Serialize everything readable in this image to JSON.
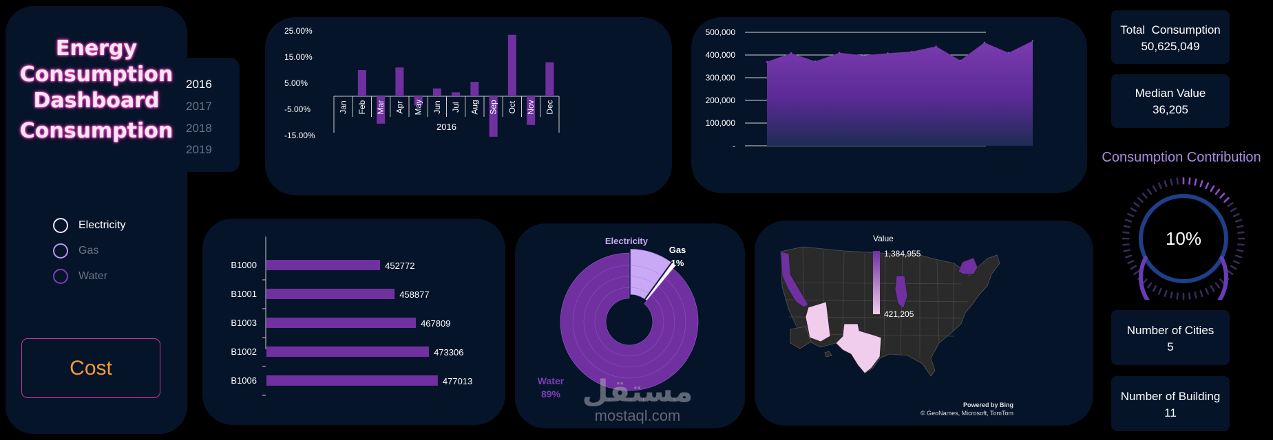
{
  "sidebar": {
    "title_lines": [
      "Energy",
      "Consumption",
      "Dashboard"
    ],
    "section_label": "Consumption",
    "years": [
      {
        "label": "2016",
        "active": true
      },
      {
        "label": "2017",
        "active": false
      },
      {
        "label": "2018",
        "active": false
      },
      {
        "label": "2019",
        "active": false
      }
    ],
    "options": [
      {
        "label": "Electricity",
        "color": "#f2e6ff",
        "label_color": "#ffffff"
      },
      {
        "label": "Gas",
        "color": "#b996f0",
        "label_color": "#6c7385"
      },
      {
        "label": "Water",
        "color": "#7a3fb8",
        "label_color": "#6c7385"
      }
    ],
    "cost_button": "Cost"
  },
  "kpis": {
    "total_label": "Total  Consumption",
    "total_value": "50,625,049",
    "median_label": "Median Value",
    "median_value": "36,205",
    "contribution_label": "Consumption Contribution",
    "contribution_value": "10%",
    "contribution_fraction": 0.1,
    "cities_label": "Number of Cities",
    "cities_value": "5",
    "buildings_label": "Number of Building",
    "buildings_value": "11"
  },
  "chart_data": [
    {
      "type": "bar",
      "categories": [
        "Jan",
        "Feb",
        "Mar",
        "Apr",
        "May",
        "Jun",
        "Jul",
        "Aug",
        "Sep",
        "Oct",
        "Nov",
        "Dec"
      ],
      "values": [
        0,
        10.0,
        -10.5,
        11.0,
        -3.5,
        3.0,
        1.5,
        5.5,
        -15.5,
        23.5,
        -11.0,
        13.0
      ],
      "group_label": "2016",
      "y_ticks": [
        "25.00%",
        "15.00%",
        "5.00%",
        "-5.00%",
        "-15.00%"
      ],
      "ylim": [
        -15,
        25
      ],
      "unit": "%",
      "color": "#7030a0"
    },
    {
      "type": "area",
      "values": [
        370000,
        408000,
        372000,
        410000,
        398000,
        408000,
        415000,
        438000,
        376000,
        455000,
        410000,
        462000
      ],
      "y_ticks": [
        "500,000",
        "400,000",
        "300,000",
        "200,000",
        "100,000",
        "-"
      ],
      "ylim": [
        0,
        500000
      ],
      "grid": true,
      "color": "#7030a0"
    },
    {
      "type": "bar",
      "orientation": "horizontal",
      "categories": [
        "B1000",
        "B1001",
        "B1003",
        "B1002",
        "B1006"
      ],
      "values": [
        452772,
        458877,
        467809,
        473306,
        477013
      ],
      "labels": [
        "452772",
        "458877",
        "467809",
        "473306",
        "477013"
      ],
      "color": "#7030a0"
    },
    {
      "type": "pie",
      "variant": "donut",
      "labels": [
        "Electricity",
        "Gas",
        "Water"
      ],
      "values": [
        10,
        1,
        89
      ],
      "value_labels": [
        "10%",
        "1%",
        "89%"
      ],
      "colors": [
        "#c9a9f5",
        "#ffffff",
        "#7030a0"
      ]
    }
  ],
  "map": {
    "legend_title": "Value",
    "legend_max": "1,384,955",
    "legend_min": "421,205",
    "credit_line1": "Powered by Bing",
    "credit_line2": "© GeoNames, Microsoft, TomTom",
    "low_color": "#f0cdec",
    "high_color": "#7030a0"
  },
  "watermark": {
    "text_arabic": "مستقل",
    "text_latin": "mostaql.com"
  }
}
